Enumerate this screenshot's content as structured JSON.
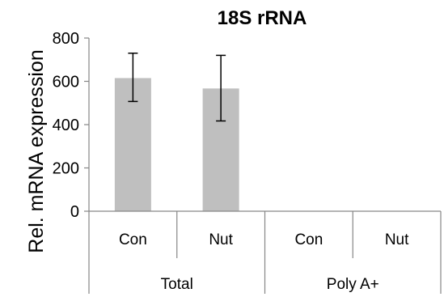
{
  "chart_data": {
    "type": "bar",
    "title": "18S rRNA",
    "ylabel": "Rel. mRNA expression",
    "xlabel": "",
    "ylim": [
      0,
      800
    ],
    "yticks": [
      0,
      200,
      400,
      600,
      800
    ],
    "categories": [
      "Con",
      "Nut",
      "Con",
      "Nut"
    ],
    "groups": [
      {
        "label": "Total",
        "categories": [
          "Con",
          "Nut"
        ]
      },
      {
        "label": "Poly A+",
        "categories": [
          "Con",
          "Nut"
        ]
      }
    ],
    "values": [
      615,
      567,
      0,
      0
    ],
    "error_bars": [
      {
        "low": 507,
        "high": 730
      },
      {
        "low": 417,
        "high": 720
      },
      null,
      null
    ],
    "bar_color": "#bfbfbf",
    "grid": false,
    "legend": "none"
  }
}
